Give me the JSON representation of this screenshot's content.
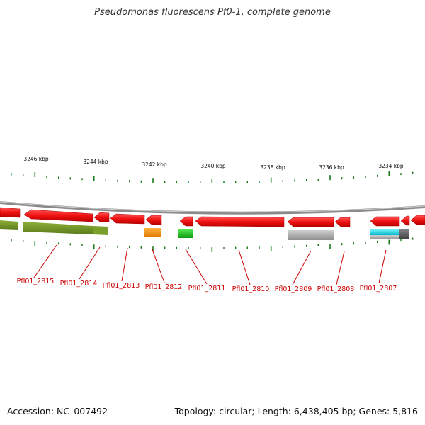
{
  "header": {
    "title": "Pseudomonas fluorescens Pf0-1, complete genome"
  },
  "axis_labels": [
    "3246 kbp",
    "3244 kbp",
    "3242 kbp",
    "3240 kbp",
    "3238 kbp",
    "3236 kbp",
    "3234 kbp"
  ],
  "gene_labels": [
    "Pfl01_2815",
    "Pfl01_2814",
    "Pfl01_2813",
    "Pfl01_2812",
    "Pfl01_2811",
    "Pfl01_2810",
    "Pfl01_2809",
    "Pfl01_2808",
    "Pfl01_2807"
  ],
  "footer": {
    "accession": "Accession: NC_007492",
    "topology": "Topology: circular; Length: 6,438,405 bp; Genes: 5,816"
  },
  "colors": {
    "gene": "#ee1111",
    "olive": "#6b8e23",
    "orange": "#ff8c00",
    "green": "#22cc22",
    "gray": "#a8a8a8",
    "cyan": "#00e5ee",
    "darkgray": "#555555",
    "tick": "#1a7a1a",
    "label": "#cc0000"
  }
}
